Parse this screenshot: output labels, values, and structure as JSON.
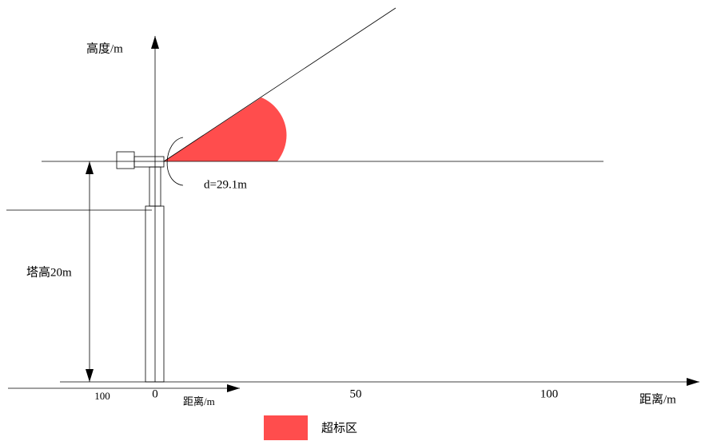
{
  "labels": {
    "height_axis": "高度/m",
    "distance": "d=29.1m",
    "tower_height": "塔高20m",
    "small_axis_label": "距离/m",
    "main_axis_label": "距离/m"
  },
  "ticks": {
    "left": "100",
    "origin": "0",
    "mid": "50",
    "right": "100"
  },
  "legend": {
    "label": "超标区"
  }
}
